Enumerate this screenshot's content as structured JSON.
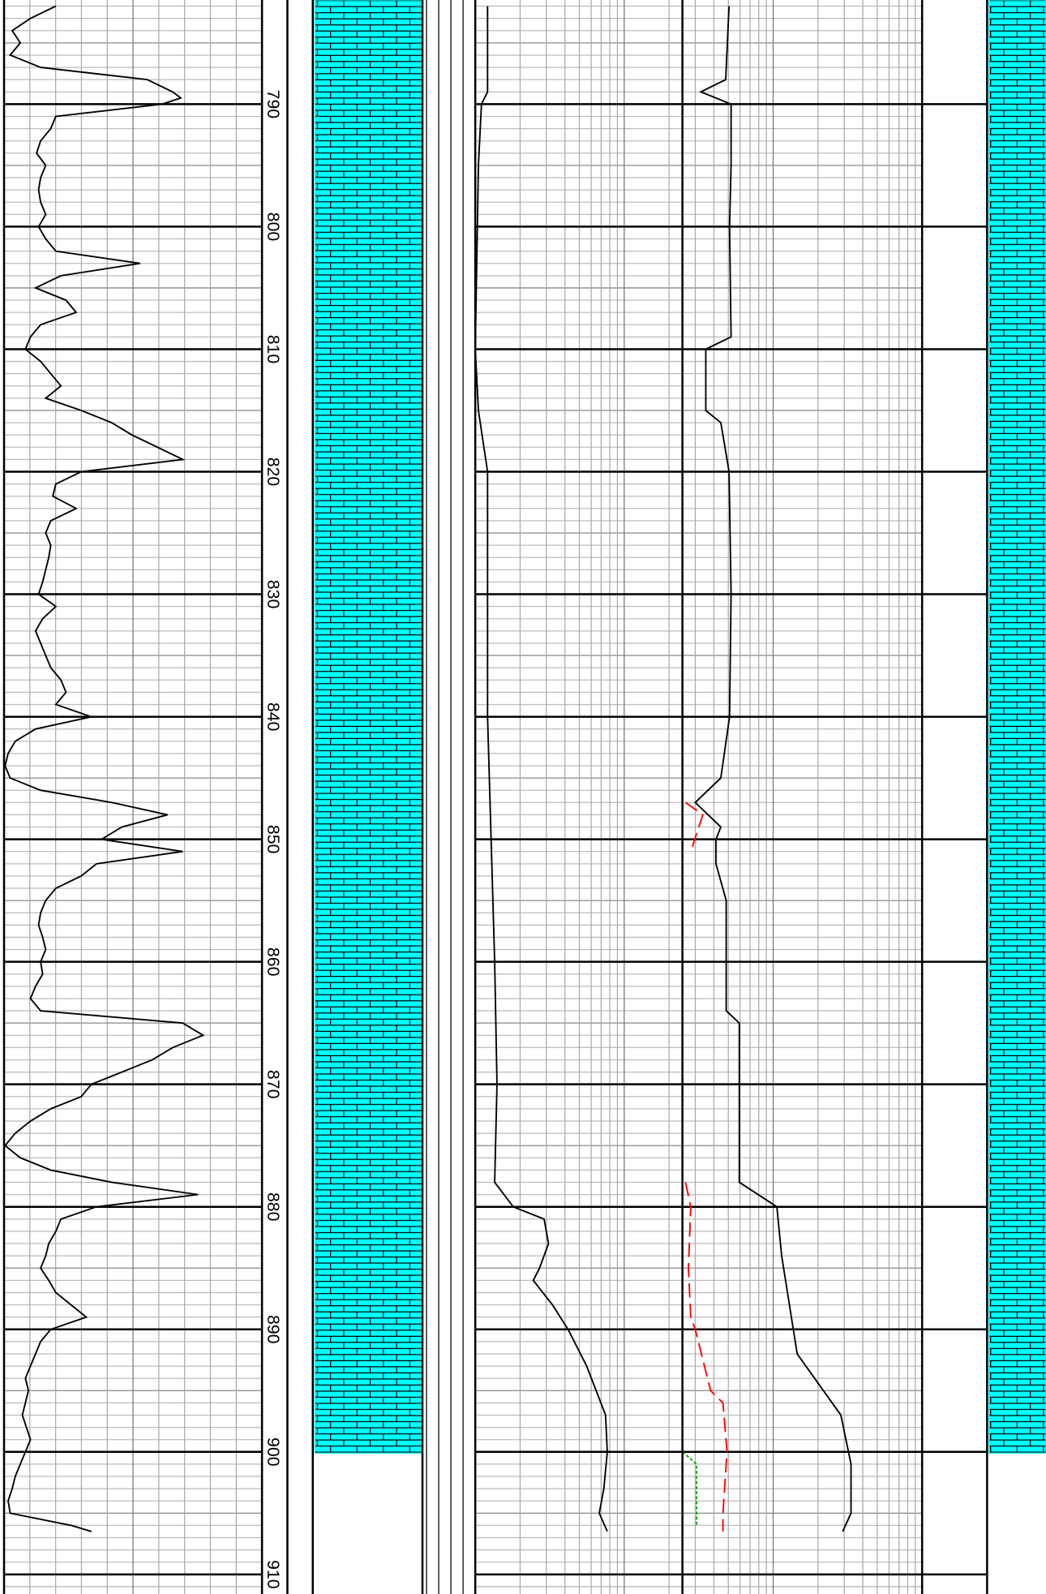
{
  "chart_data": {
    "type": "well-log",
    "ylim": [
      781.5,
      911.6
    ],
    "yticks": [
      790,
      800,
      810,
      820,
      830,
      840,
      850,
      860,
      870,
      880,
      890,
      900,
      910
    ],
    "lithology": {
      "base": 900.1,
      "color": "#00ffff"
    },
    "tracks": [
      {
        "scale": "linear",
        "xlim": [
          0,
          254
        ],
        "series": [
          {
            "color": "#000000",
            "style": "solid",
            "x": [
              782,
              783,
              784,
              785,
              786,
              787,
              788,
              789,
              789.5,
              790,
              791,
              792,
              793,
              794,
              795,
              796,
              797,
              798,
              799,
              800,
              801,
              802,
              803,
              804,
              805,
              806,
              807,
              808,
              809,
              810,
              811,
              812,
              813,
              814,
              815,
              816,
              817,
              818,
              819,
              820,
              821,
              822,
              823,
              824,
              825,
              826,
              827,
              828,
              829,
              830,
              831,
              832,
              833,
              834,
              835,
              836,
              837,
              838,
              839,
              840,
              841,
              842,
              843,
              844,
              845,
              846,
              847,
              848,
              849,
              850,
              851,
              852,
              853,
              854,
              855,
              856,
              857,
              858,
              859,
              860,
              861,
              862,
              863,
              864,
              865,
              866,
              867,
              868,
              869,
              870,
              871,
              872,
              873,
              874,
              875,
              876,
              877,
              878,
              879,
              880,
              881,
              882,
              883,
              884,
              885,
              886,
              887,
              888,
              889,
              890,
              891,
              892,
              893,
              894,
              895,
              896,
              897,
              898,
              899,
              900,
              901,
              902,
              903,
              904,
              905,
              906,
              906.5
            ],
            "values": [
              51,
              26,
              8,
              16,
              6,
              36,
              141,
              166,
              174,
              156,
              51,
              46,
              36,
              32,
              41,
              36,
              34,
              36,
              41,
              34,
              41,
              51,
              134,
              56,
              31,
              61,
              71,
              36,
              26,
              21,
              36,
              46,
              56,
              41,
              76,
              106,
              126,
              151,
              176,
              76,
              51,
              48,
              71,
              46,
              41,
              46,
              44,
              41,
              38,
              34,
              51,
              38,
              31,
              36,
              41,
              46,
              56,
              61,
              51,
              86,
              31,
              11,
              4,
              1,
              6,
              36,
              106,
              161,
              116,
              96,
              176,
              91,
              76,
              51,
              41,
              36,
              34,
              38,
              41,
              36,
              38,
              31,
              26,
              36,
              176,
              196,
              166,
              146,
              116,
              86,
              76,
              46,
              26,
              11,
              1,
              16,
              46,
              106,
              191,
              91,
              56,
              51,
              44,
              41,
              36,
              44,
              51,
              66,
              81,
              46,
              36,
              31,
              26,
              21,
              24,
              21,
              18,
              22,
              26,
              21,
              16,
              11,
              8,
              4,
              6,
              66,
              86
            ]
          }
        ]
      },
      {
        "scale": "log",
        "xlim": [
          1,
          1000
        ],
        "series": [
          {
            "color": "#000000",
            "style": "solid",
            "x": [
              782,
              789,
              790,
              795,
              810,
              815,
              820,
              840,
              860,
              870,
              878,
              880,
              881,
              883,
              885,
              886,
              888,
              890,
              893,
              897,
              900,
              903,
              905,
              906.5
            ],
            "values": [
              1.21,
              1.21,
              1.1,
              1.05,
              1.0,
              1.05,
              1.21,
              1.21,
              1.35,
              1.4,
              1.35,
              1.8,
              2.9,
              3.1,
              2.7,
              2.45,
              3.3,
              4.2,
              5.6,
              7.5,
              7.7,
              7.3,
              6.8,
              7.7
            ]
          },
          {
            "color": "#000000",
            "style": "solid",
            "x": [
              782,
              788,
              789,
              790,
              795,
              800,
              809,
              810,
              815,
              816,
              820,
              830,
              840,
              845,
              847,
              849,
              850,
              852,
              855,
              860,
              864,
              865,
              870,
              878,
              880,
              884,
              892,
              897,
              901,
              905,
              906.5
            ],
            "values": [
              50.6,
              48,
              32.7,
              52.2,
              52.2,
              51,
              52.2,
              35.3,
              35.3,
              44.5,
              50.6,
              52.2,
              51,
              44.5,
              30,
              44.5,
              41.3,
              41.3,
              48.4,
              48.4,
              48.4,
              59.3,
              59.3,
              59.3,
              106,
              114,
              145,
              285,
              333,
              333,
              293
            ]
          },
          {
            "color": "#ff0000",
            "style": "dashed",
            "x": [
              847,
              848,
              851,
              852,
              878,
              880,
              885,
              889,
              890,
              895,
              896,
              900,
              905,
              906.5
            ],
            "values": [
              25.8,
              33.7,
              28,
              null,
              25.8,
              28,
              27,
              28,
              30,
              38,
              46,
              49,
              46,
              46
            ]
          },
          {
            "color": "#00aa00",
            "style": "dotted",
            "x": [
              900,
              901,
              906
            ],
            "values": [
              24.6,
              30.6,
              30.6
            ]
          }
        ]
      }
    ]
  }
}
